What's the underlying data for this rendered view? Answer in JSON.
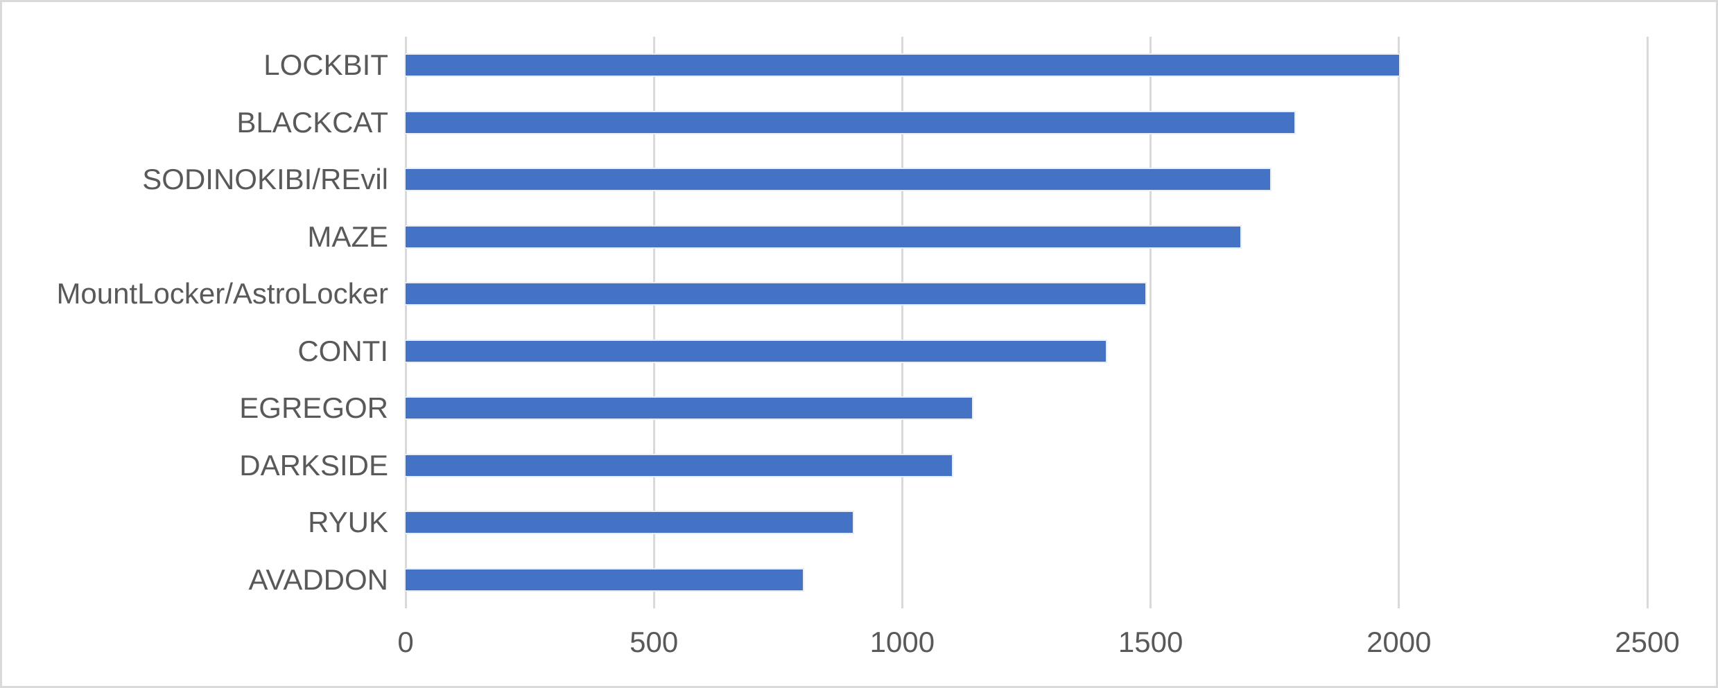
{
  "chart_data": {
    "type": "bar",
    "orientation": "horizontal",
    "title": "",
    "xlabel": "",
    "ylabel": "",
    "categories": [
      "LOCKBIT",
      "BLACKCAT",
      "SODINOKIBI/REvil",
      "MAZE",
      "MountLocker/AstroLocker",
      "CONTI",
      "EGREGOR",
      "DARKSIDE",
      "RYUK",
      "AVADDON"
    ],
    "values": [
      2000,
      1790,
      1740,
      1680,
      1490,
      1410,
      1140,
      1100,
      900,
      800
    ],
    "xlim": [
      0,
      2500
    ],
    "xticks": [
      0,
      500,
      1000,
      1500,
      2000,
      2500
    ],
    "grid": "vertical-gridlines-on",
    "legend": "none",
    "bar_color": "#4472C4",
    "gridline_color": "#D9D9D9",
    "axis_text_color": "#595959",
    "frame_color": "#DADADA",
    "background_color": "#FFFFFF"
  }
}
